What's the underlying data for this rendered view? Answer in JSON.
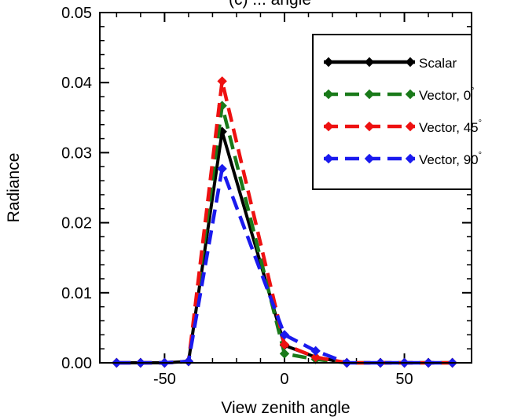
{
  "chart_data": {
    "type": "line",
    "title": "(c) ... angle",
    "xlabel": "View zenith angle",
    "ylabel": "Radiance",
    "xlim": [
      -77,
      78
    ],
    "ylim": [
      0,
      0.05
    ],
    "xticks": [
      -50,
      0,
      50
    ],
    "yticks": [
      0.0,
      0.01,
      0.02,
      0.03,
      0.04,
      0.05
    ],
    "ytick_labels": [
      "0.00",
      "0.01",
      "0.02",
      "0.03",
      "0.04",
      "0.05"
    ],
    "grid": false,
    "legend_position": "top-right",
    "x": [
      -70,
      -60,
      -50,
      -40,
      -26,
      0,
      13,
      26,
      40,
      50,
      60,
      70
    ],
    "series": [
      {
        "name": "Scalar",
        "color": "#000000",
        "dash": "solid",
        "values": [
          0,
          0,
          0,
          0.0002,
          0.033,
          0.0025,
          0.0008,
          0,
          0,
          0,
          0,
          0
        ]
      },
      {
        "name": "Vector, 0",
        "name_suffix": "°",
        "color": "#1a7a1a",
        "dash": "dashed",
        "values": [
          0,
          0,
          0,
          0.0002,
          0.0367,
          0.0013,
          0.0005,
          0,
          0,
          0,
          0,
          0
        ]
      },
      {
        "name": "Vector, 45",
        "name_suffix": "°",
        "color": "#ee1111",
        "dash": "dashed",
        "values": [
          0,
          0,
          0,
          0.0002,
          0.0402,
          0.0026,
          0.0008,
          0,
          0,
          0,
          0,
          0
        ]
      },
      {
        "name": "Vector, 90",
        "name_suffix": "°",
        "color": "#1a1aee",
        "dash": "dashed",
        "values": [
          0,
          0,
          0,
          0.0002,
          0.0277,
          0.004,
          0.0017,
          0,
          0,
          0,
          0,
          0
        ]
      }
    ]
  }
}
